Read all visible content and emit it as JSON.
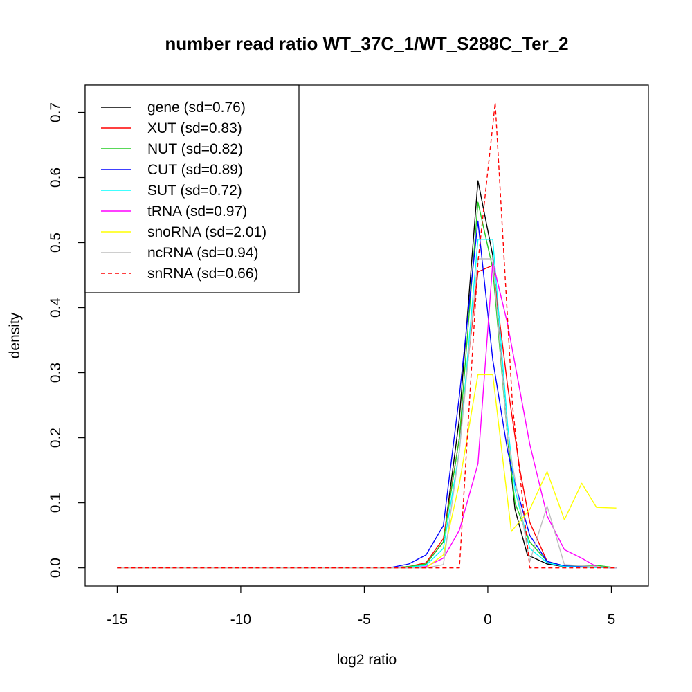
{
  "chart_data": {
    "type": "line",
    "title": "number read ratio WT_37C_1/WT_S288C_Ter_2",
    "xlabel": "log2 ratio",
    "ylabel": "density",
    "xlim": [
      -16.3,
      6.5
    ],
    "ylim": [
      -0.028,
      0.742
    ],
    "x_ticks": [
      -15,
      -10,
      -5,
      0,
      5
    ],
    "y_ticks": [
      0.0,
      0.1,
      0.2,
      0.3,
      0.4,
      0.5,
      0.6,
      0.7
    ],
    "x_tick_labels": [
      "-15",
      "-10",
      "-5",
      "0",
      "5"
    ],
    "y_tick_labels": [
      "0.0",
      "0.1",
      "0.2",
      "0.3",
      "0.4",
      "0.5",
      "0.6",
      "0.7"
    ],
    "legend_position": "top-left",
    "grid": false,
    "series": [
      {
        "name": "gene (sd=0.76)",
        "color": "#000000",
        "dash": false,
        "x": [
          -15,
          -4,
          -3.2,
          -2.5,
          -1.8,
          -1.15,
          -0.4,
          0.2,
          0.8,
          1.1,
          1.6,
          2.4,
          3.1,
          5.2
        ],
        "y": [
          0,
          0,
          0.002,
          0.006,
          0.04,
          0.23,
          0.595,
          0.48,
          0.2,
          0.09,
          0.02,
          0.006,
          0.002,
          0
        ]
      },
      {
        "name": "XUT (sd=0.83)",
        "color": "#ff0000",
        "dash": false,
        "x": [
          -15,
          -4,
          -3.2,
          -2.5,
          -1.8,
          -1.15,
          -0.4,
          0.2,
          0.8,
          1.3,
          1.7,
          2.4,
          3.1,
          5.2
        ],
        "y": [
          0,
          0,
          0.002,
          0.008,
          0.045,
          0.2,
          0.455,
          0.465,
          0.28,
          0.15,
          0.07,
          0.01,
          0.003,
          0
        ]
      },
      {
        "name": "NUT (sd=0.82)",
        "color": "#22cc22",
        "dash": false,
        "x": [
          -15,
          -4,
          -3.2,
          -2.5,
          -1.8,
          -1.15,
          -0.4,
          0.2,
          0.8,
          1.1,
          1.7,
          2.4,
          3.1,
          4.4,
          5.2
        ],
        "y": [
          0,
          0,
          0.002,
          0.006,
          0.04,
          0.2,
          0.562,
          0.46,
          0.2,
          0.1,
          0.04,
          0.01,
          0.003,
          0.004,
          0
        ]
      },
      {
        "name": "CUT (sd=0.89)",
        "color": "#0000ff",
        "dash": false,
        "x": [
          -15,
          -4,
          -3.2,
          -2.5,
          -1.8,
          -1.15,
          -0.4,
          0.2,
          0.8,
          1.1,
          1.7,
          2.4,
          3.1,
          5.2
        ],
        "y": [
          0,
          0,
          0.006,
          0.02,
          0.065,
          0.265,
          0.533,
          0.32,
          0.18,
          0.13,
          0.05,
          0.01,
          0.003,
          0
        ]
      },
      {
        "name": "SUT (sd=0.72)",
        "color": "#00ffff",
        "dash": false,
        "x": [
          -15,
          -4,
          -3.2,
          -2.5,
          -1.8,
          -1.15,
          -0.4,
          0.2,
          0.8,
          1.1,
          1.7,
          2.4,
          3.1,
          5.2
        ],
        "y": [
          0,
          0,
          0.001,
          0.004,
          0.03,
          0.18,
          0.505,
          0.505,
          0.22,
          0.12,
          0.03,
          0.008,
          0.002,
          0
        ]
      },
      {
        "name": "tRNA (sd=0.97)",
        "color": "#ff00ff",
        "dash": false,
        "x": [
          -15,
          -4,
          -3.2,
          -2.5,
          -1.8,
          -1.15,
          -0.4,
          0.2,
          0.8,
          1.7,
          2.4,
          3.1,
          3.8,
          4.4,
          5.2
        ],
        "y": [
          0,
          0,
          0,
          0.002,
          0.015,
          0.058,
          0.16,
          0.47,
          0.375,
          0.19,
          0.08,
          0.028,
          0.015,
          0.002,
          0
        ]
      },
      {
        "name": "snoRNA (sd=2.01)",
        "color": "#ffff00",
        "dash": false,
        "x": [
          -15,
          -2.5,
          -1.8,
          -1.15,
          -0.4,
          0.2,
          0.95,
          1.7,
          2.4,
          3.1,
          3.8,
          4.4,
          5.2
        ],
        "y": [
          0,
          0,
          0.02,
          0.13,
          0.297,
          0.297,
          0.056,
          0.09,
          0.148,
          0.074,
          0.13,
          0.093,
          0.092
        ]
      },
      {
        "name": "ncRNA (sd=0.94)",
        "color": "#bebebe",
        "dash": false,
        "x": [
          -15,
          -2.5,
          -1.8,
          -1.15,
          -0.4,
          0.2,
          0.8,
          1.7,
          2.4,
          3.1,
          5.2
        ],
        "y": [
          0,
          0,
          0.005,
          0.18,
          0.475,
          0.475,
          0.2,
          0.01,
          0.095,
          0.005,
          0
        ]
      },
      {
        "name": "snRNA (sd=0.66)",
        "color": "#ff0000",
        "dash": true,
        "x": [
          -15,
          -1.15,
          -0.4,
          0.3,
          1.0,
          1.7,
          5.2
        ],
        "y": [
          0,
          0,
          0.47,
          0.715,
          0.25,
          0,
          0
        ]
      }
    ]
  }
}
